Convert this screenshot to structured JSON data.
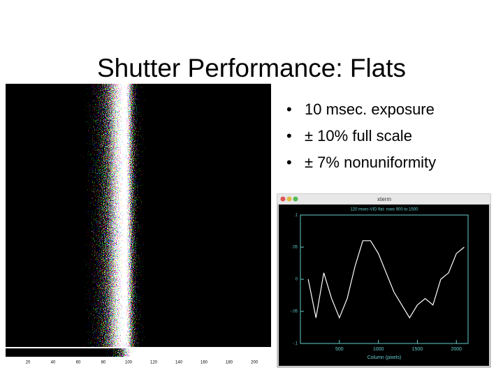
{
  "slide": {
    "title": "Shutter Performance: Flats",
    "bullets": [
      "10 msec. exposure",
      "± 10% full scale",
      "± 7% nonuniformity"
    ]
  },
  "colorbar": {
    "labels": [
      "20",
      "40",
      "60",
      "80",
      "100",
      "120",
      "140",
      "160",
      "180",
      "200"
    ]
  },
  "plot": {
    "window_title": "xterm",
    "title": "120 msec-VID flat: rows 900 to 1500",
    "xlabel": "Column (pixels)",
    "xlim": [
      0,
      2150
    ],
    "ylim": [
      -0.1,
      0.1
    ],
    "xticks": [
      500,
      1000,
      1500,
      2000
    ],
    "yticks": [
      {
        "value": 0.1,
        "label": ".1"
      },
      {
        "value": 0.05,
        "label": ".05"
      },
      0,
      {
        "value": -0.05,
        "label": "-.05"
      },
      {
        "value": -0.1,
        "label": "-.1"
      }
    ],
    "x": [
      100,
      200,
      300,
      400,
      500,
      600,
      700,
      800,
      900,
      1000,
      1100,
      1200,
      1300,
      1400,
      1500,
      1600,
      1700,
      1800,
      1900,
      2000,
      2100
    ],
    "values": [
      0.0,
      -0.06,
      0.01,
      -0.03,
      -0.06,
      -0.03,
      0.02,
      0.06,
      0.06,
      0.04,
      0.01,
      -0.02,
      -0.04,
      -0.06,
      -0.04,
      -0.03,
      -0.04,
      0.0,
      0.01,
      0.04,
      0.05
    ]
  }
}
